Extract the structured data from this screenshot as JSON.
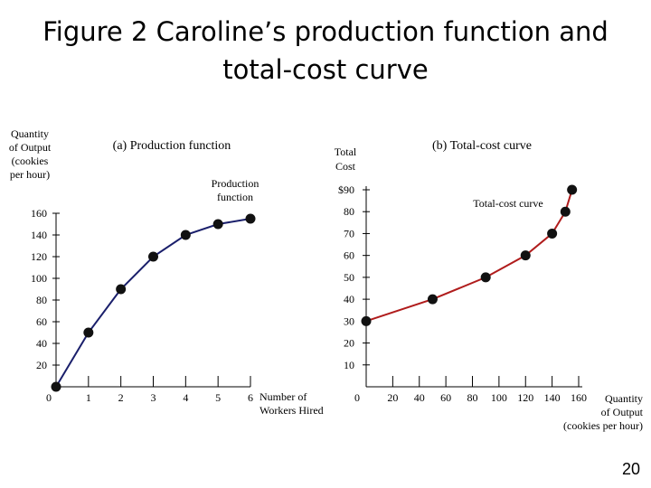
{
  "slide": {
    "title_line1": "Figure 2 Caroline’s production function and",
    "title_line2": "total-cost curve",
    "page_number": "20"
  },
  "chart_data": [
    {
      "type": "line",
      "panel_title": "(a) Production function",
      "ylabel_lines": [
        "Quantity",
        "of Output",
        "(cookies",
        "per hour)"
      ],
      "xlabel_lines": [
        "Number of",
        "Workers Hired"
      ],
      "series_label_lines": [
        "Production",
        "function"
      ],
      "x": [
        0,
        1,
        2,
        3,
        4,
        5,
        6
      ],
      "y": [
        0,
        50,
        90,
        120,
        140,
        150,
        155
      ],
      "xticks": [
        0,
        1,
        2,
        3,
        4,
        5,
        6
      ],
      "yticks": [
        20,
        40,
        60,
        80,
        100,
        120,
        140,
        160
      ],
      "xlim": [
        0,
        6
      ],
      "ylim": [
        0,
        160
      ],
      "color": "#1a1f6b"
    },
    {
      "type": "line",
      "panel_title": "(b) Total-cost curve",
      "ylabel_lines": [
        "Total",
        "Cost"
      ],
      "xlabel_lines": [
        "Quantity",
        "of Output",
        "(cookies per hour)"
      ],
      "series_label_lines": [
        "Total-cost curve"
      ],
      "x": [
        0,
        50,
        90,
        120,
        140,
        150,
        155
      ],
      "y": [
        30,
        40,
        50,
        60,
        70,
        80,
        90
      ],
      "xticks": [
        0,
        20,
        40,
        60,
        80,
        100,
        120,
        140,
        160
      ],
      "ytick_labels": [
        "10",
        "20",
        "30",
        "40",
        "50",
        "60",
        "70",
        "80",
        "$90"
      ],
      "yticks": [
        10,
        20,
        30,
        40,
        50,
        60,
        70,
        80,
        90
      ],
      "xlim": [
        0,
        160
      ],
      "ylim": [
        0,
        90
      ],
      "color": "#b01c1c"
    }
  ]
}
